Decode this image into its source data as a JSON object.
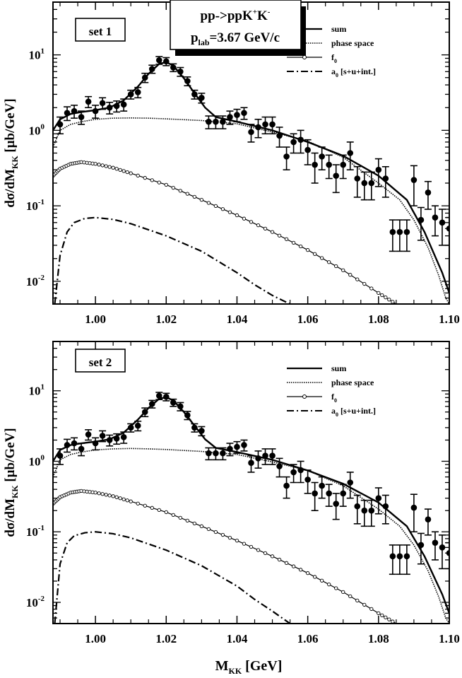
{
  "chart_data": [
    {
      "type": "line",
      "panel_label": "set 1",
      "reaction_title": {
        "main": "pp->ppK",
        "sup1": "+",
        "mid": "K",
        "sup2": "-"
      },
      "beam_momentum": {
        "prefix": "p",
        "sub": "lab",
        "value": "=3.67 GeV/c"
      },
      "xlabel": {
        "main": "M",
        "sub": "KK",
        "unit": " [GeV]"
      },
      "ylabel": {
        "main": "dσ/dM",
        "sub": "KK",
        "unit": "  [μb/GeV]"
      },
      "yscale": "log",
      "xlim": [
        0.988,
        1.1
      ],
      "ylim": [
        0.005,
        50
      ],
      "x_ticks": [
        "1.00",
        "1.02",
        "1.04",
        "1.06",
        "1.08",
        "1.10"
      ],
      "x_tick_values": [
        1.0,
        1.02,
        1.04,
        1.06,
        1.08,
        1.1
      ],
      "y_ticks": [
        {
          "base": "10",
          "exp": "1",
          "value": 10
        },
        {
          "base": "10",
          "exp": "0",
          "value": 1
        },
        {
          "base": "10",
          "exp": "-1",
          "value": 0.1
        },
        {
          "base": "10",
          "exp": "-2",
          "value": 0.01
        }
      ],
      "legend": [
        {
          "name": "sum",
          "style": "solid"
        },
        {
          "name": "phase space",
          "style": "dotted"
        },
        {
          "name": "f",
          "sub": "0",
          "style": "open-circle"
        },
        {
          "name": "a",
          "sub": "0",
          "suffix": " [s+u+int.]",
          "style": "dash-dot"
        }
      ],
      "series": [
        {
          "name": "sum",
          "x": [
            0.988,
            0.99,
            0.993,
            0.996,
            1.0,
            1.004,
            1.008,
            1.012,
            1.015,
            1.018,
            1.02,
            1.022,
            1.025,
            1.028,
            1.031,
            1.034,
            1.04,
            1.05,
            1.06,
            1.07,
            1.08,
            1.088,
            1.093,
            1.098,
            1.1
          ],
          "y": [
            1.0,
            1.4,
            1.65,
            1.75,
            1.85,
            2.0,
            2.5,
            3.8,
            5.6,
            7.6,
            8.0,
            7.2,
            4.9,
            3.1,
            2.0,
            1.5,
            1.3,
            1.0,
            0.7,
            0.46,
            0.25,
            0.12,
            0.045,
            0.013,
            0.007
          ]
        },
        {
          "name": "phase space",
          "x": [
            0.988,
            0.99,
            0.993,
            0.996,
            1.0,
            1.005,
            1.01,
            1.015,
            1.02,
            1.03,
            1.04,
            1.05,
            1.06,
            1.07,
            1.08,
            1.086,
            1.09,
            1.094,
            1.097,
            1.099,
            1.1
          ],
          "y": [
            0.6,
            1.0,
            1.2,
            1.3,
            1.4,
            1.45,
            1.46,
            1.45,
            1.42,
            1.35,
            1.22,
            0.95,
            0.72,
            0.44,
            0.2,
            0.12,
            0.065,
            0.028,
            0.012,
            0.006,
            0.005
          ]
        },
        {
          "name": "f0",
          "x": [
            0.988,
            0.99,
            0.993,
            0.996,
            1.0,
            1.005,
            1.01,
            1.02,
            1.03,
            1.04,
            1.05,
            1.06,
            1.07,
            1.08,
            1.085
          ],
          "y": [
            0.25,
            0.31,
            0.36,
            0.38,
            0.36,
            0.32,
            0.27,
            0.19,
            0.12,
            0.075,
            0.045,
            0.026,
            0.014,
            0.007,
            0.005
          ]
        },
        {
          "name": "a0 [s+u+int.]",
          "x": [
            0.9885,
            0.99,
            0.992,
            0.994,
            0.997,
            1.0,
            1.005,
            1.01,
            1.02,
            1.03,
            1.04,
            1.045,
            1.05,
            1.055
          ],
          "y": [
            0.005,
            0.022,
            0.045,
            0.06,
            0.068,
            0.07,
            0.066,
            0.058,
            0.04,
            0.025,
            0.013,
            0.009,
            0.0065,
            0.005
          ]
        }
      ],
      "points": {
        "x": [
          0.99,
          0.992,
          0.994,
          0.996,
          0.998,
          1.0,
          1.002,
          1.004,
          1.006,
          1.008,
          1.01,
          1.012,
          1.014,
          1.016,
          1.018,
          1.02,
          1.022,
          1.024,
          1.026,
          1.028,
          1.03,
          1.032,
          1.034,
          1.036,
          1.038,
          1.04,
          1.042,
          1.044,
          1.046,
          1.048,
          1.05,
          1.052,
          1.054,
          1.056,
          1.058,
          1.06,
          1.062,
          1.064,
          1.066,
          1.068,
          1.07,
          1.072,
          1.074,
          1.076,
          1.078,
          1.08,
          1.082,
          1.084,
          1.086,
          1.088,
          1.09,
          1.092,
          1.094,
          1.096,
          1.098,
          1.1
        ],
        "y": [
          1.2,
          1.7,
          1.8,
          1.5,
          2.4,
          1.8,
          2.3,
          2.0,
          2.1,
          2.2,
          3.0,
          3.2,
          5.0,
          6.5,
          8.5,
          8.2,
          6.8,
          6.0,
          4.5,
          3.0,
          2.7,
          1.3,
          1.3,
          1.3,
          1.5,
          1.6,
          1.7,
          0.95,
          1.1,
          1.2,
          1.2,
          0.85,
          0.45,
          0.7,
          0.75,
          0.55,
          0.35,
          0.45,
          0.35,
          0.25,
          0.35,
          0.5,
          0.23,
          0.2,
          0.2,
          0.3,
          0.23,
          0.045,
          0.045,
          0.045,
          0.22,
          0.065,
          0.15,
          0.07,
          0.06,
          0.05
        ],
        "err": [
          0.3,
          0.35,
          0.35,
          0.3,
          0.4,
          0.35,
          0.4,
          0.35,
          0.35,
          0.4,
          0.4,
          0.5,
          0.7,
          0.8,
          1.0,
          1.0,
          0.8,
          0.8,
          0.6,
          0.4,
          0.4,
          0.25,
          0.25,
          0.25,
          0.3,
          0.3,
          0.3,
          0.25,
          0.3,
          0.3,
          0.3,
          0.25,
          0.15,
          0.2,
          0.25,
          0.2,
          0.15,
          0.15,
          0.12,
          0.1,
          0.12,
          0.2,
          0.1,
          0.08,
          0.08,
          0.12,
          0.1,
          0.02,
          0.02,
          0.02,
          0.12,
          0.03,
          0.06,
          0.03,
          0.03,
          0.02
        ]
      }
    },
    {
      "type": "line",
      "panel_label": "set 2",
      "xlabel": {
        "main": "M",
        "sub": "KK",
        "unit": " [GeV]"
      },
      "ylabel": {
        "main": "dσ/dM",
        "sub": "KK",
        "unit": "  [μb/GeV]"
      },
      "yscale": "log",
      "xlim": [
        0.988,
        1.1
      ],
      "ylim": [
        0.005,
        50
      ],
      "x_ticks": [
        "1.00",
        "1.02",
        "1.04",
        "1.06",
        "1.08",
        "1.10"
      ],
      "x_tick_values": [
        1.0,
        1.02,
        1.04,
        1.06,
        1.08,
        1.1
      ],
      "y_ticks": [
        {
          "base": "10",
          "exp": "1",
          "value": 10
        },
        {
          "base": "10",
          "exp": "0",
          "value": 1
        },
        {
          "base": "10",
          "exp": "-1",
          "value": 0.1
        },
        {
          "base": "10",
          "exp": "-2",
          "value": 0.01
        }
      ],
      "legend": [
        {
          "name": "sum",
          "style": "solid"
        },
        {
          "name": "phase space",
          "style": "dotted"
        },
        {
          "name": "f",
          "sub": "0",
          "style": "open-circle"
        },
        {
          "name": "a",
          "sub": "0",
          "suffix": " [s+u+int.]",
          "style": "dash-dot"
        }
      ],
      "series": [
        {
          "name": "sum",
          "x": [
            0.988,
            0.99,
            0.993,
            0.996,
            1.0,
            1.004,
            1.008,
            1.012,
            1.015,
            1.018,
            1.02,
            1.022,
            1.025,
            1.028,
            1.031,
            1.034,
            1.04,
            1.05,
            1.06,
            1.07,
            1.08,
            1.088,
            1.093,
            1.098,
            1.1
          ],
          "y": [
            1.0,
            1.45,
            1.7,
            1.8,
            1.9,
            2.05,
            2.55,
            3.9,
            5.7,
            7.7,
            8.1,
            7.3,
            5.0,
            3.2,
            2.05,
            1.55,
            1.35,
            1.05,
            0.74,
            0.48,
            0.26,
            0.12,
            0.045,
            0.013,
            0.007
          ]
        },
        {
          "name": "phase space",
          "x": [
            0.988,
            0.99,
            0.993,
            0.996,
            1.0,
            1.005,
            1.01,
            1.015,
            1.02,
            1.03,
            1.04,
            1.05,
            1.06,
            1.07,
            1.08,
            1.086,
            1.09,
            1.094,
            1.097,
            1.099,
            1.1
          ],
          "y": [
            0.6,
            1.05,
            1.25,
            1.35,
            1.45,
            1.5,
            1.52,
            1.5,
            1.47,
            1.38,
            1.25,
            0.98,
            0.74,
            0.45,
            0.21,
            0.12,
            0.065,
            0.028,
            0.012,
            0.006,
            0.005
          ]
        },
        {
          "name": "f0",
          "x": [
            0.988,
            0.99,
            0.993,
            0.996,
            1.0,
            1.005,
            1.01,
            1.02,
            1.03,
            1.04,
            1.05,
            1.06,
            1.07,
            1.08,
            1.085
          ],
          "y": [
            0.25,
            0.31,
            0.36,
            0.38,
            0.36,
            0.32,
            0.27,
            0.19,
            0.12,
            0.075,
            0.045,
            0.026,
            0.014,
            0.007,
            0.005
          ]
        },
        {
          "name": "a0 [s+u+int.]",
          "x": [
            0.9885,
            0.99,
            0.992,
            0.994,
            0.997,
            1.0,
            1.005,
            1.01,
            1.02,
            1.03,
            1.04,
            1.045,
            1.05,
            1.055
          ],
          "y": [
            0.005,
            0.035,
            0.07,
            0.088,
            0.097,
            0.1,
            0.094,
            0.082,
            0.055,
            0.033,
            0.017,
            0.011,
            0.0075,
            0.005
          ]
        }
      ],
      "points": {
        "x": [
          0.99,
          0.992,
          0.994,
          0.996,
          0.998,
          1.0,
          1.002,
          1.004,
          1.006,
          1.008,
          1.01,
          1.012,
          1.014,
          1.016,
          1.018,
          1.02,
          1.022,
          1.024,
          1.026,
          1.028,
          1.03,
          1.032,
          1.034,
          1.036,
          1.038,
          1.04,
          1.042,
          1.044,
          1.046,
          1.048,
          1.05,
          1.052,
          1.054,
          1.056,
          1.058,
          1.06,
          1.062,
          1.064,
          1.066,
          1.068,
          1.07,
          1.072,
          1.074,
          1.076,
          1.078,
          1.08,
          1.082,
          1.084,
          1.086,
          1.088,
          1.09,
          1.092,
          1.094,
          1.096,
          1.098,
          1.1
        ],
        "y": [
          1.2,
          1.7,
          1.8,
          1.5,
          2.4,
          1.8,
          2.3,
          2.0,
          2.1,
          2.2,
          3.0,
          3.2,
          5.0,
          6.5,
          8.5,
          8.2,
          6.8,
          6.0,
          4.5,
          3.0,
          2.7,
          1.3,
          1.3,
          1.3,
          1.5,
          1.6,
          1.7,
          0.95,
          1.1,
          1.2,
          1.2,
          0.85,
          0.45,
          0.7,
          0.75,
          0.55,
          0.35,
          0.45,
          0.35,
          0.25,
          0.35,
          0.5,
          0.23,
          0.2,
          0.2,
          0.3,
          0.23,
          0.045,
          0.045,
          0.045,
          0.22,
          0.065,
          0.15,
          0.07,
          0.06,
          0.05
        ],
        "err": [
          0.3,
          0.35,
          0.35,
          0.3,
          0.4,
          0.35,
          0.4,
          0.35,
          0.35,
          0.4,
          0.4,
          0.5,
          0.7,
          0.8,
          1.0,
          1.0,
          0.8,
          0.8,
          0.6,
          0.4,
          0.4,
          0.25,
          0.25,
          0.25,
          0.3,
          0.3,
          0.3,
          0.25,
          0.3,
          0.3,
          0.3,
          0.25,
          0.15,
          0.2,
          0.25,
          0.2,
          0.15,
          0.15,
          0.12,
          0.1,
          0.12,
          0.2,
          0.1,
          0.08,
          0.08,
          0.12,
          0.1,
          0.02,
          0.02,
          0.02,
          0.12,
          0.03,
          0.06,
          0.03,
          0.03,
          0.02
        ]
      }
    }
  ]
}
